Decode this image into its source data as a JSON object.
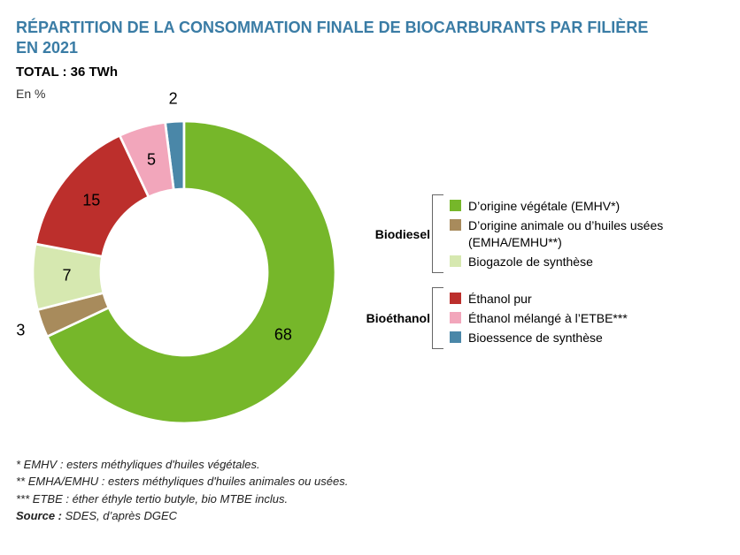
{
  "title_line1": "RÉPARTITION DE LA CONSOMMATION FINALE DE BIOCARBURANTS PAR FILIÈRE",
  "title_line2": "EN 2021",
  "subtitle": "TOTAL : 36 TWh",
  "unit_label": "En %",
  "chart": {
    "type": "donut",
    "inner_radius_pct": 55,
    "background_color": "#ffffff",
    "slice_order_clockwise_from_top": [
      "bioessence",
      "vegetale",
      "animale",
      "biogazole",
      "ethanol_pur",
      "ethanol_etbe"
    ],
    "slices": {
      "vegetale": {
        "value": 68,
        "color": "#76b72a",
        "label": "D’origine végétale (EMHV*)"
      },
      "animale": {
        "value": 3,
        "color": "#a88b5c",
        "label": "D’origine animale ou d’huiles usées (EMHA/EMHU**)"
      },
      "biogazole": {
        "value": 7,
        "color": "#d6e8b0",
        "label": "Biogazole de synthèse"
      },
      "ethanol_pur": {
        "value": 15,
        "color": "#bc2f2c",
        "label": "Éthanol pur"
      },
      "ethanol_etbe": {
        "value": 5,
        "color": "#f2a6bb",
        "label": "Éthanol mélangé à l’ETBE***"
      },
      "bioessence": {
        "value": 2,
        "color": "#4a87a8",
        "label": "Bioessence de synthèse"
      }
    },
    "label_fontsize": 18,
    "label_color": "#000000"
  },
  "legend": {
    "groups": [
      {
        "title": "Biodiesel",
        "items": [
          "vegetale",
          "animale",
          "biogazole"
        ]
      },
      {
        "title": "Bioéthanol",
        "items": [
          "ethanol_pur",
          "ethanol_etbe",
          "bioessence"
        ]
      }
    ],
    "fontsize": 14,
    "swatch_size": 13,
    "bracket_color": "#666666"
  },
  "footnotes": [
    "* EMHV : esters méthyliques d'huiles végétales.",
    "** EMHA/EMHU : esters méthyliques d'huiles animales ou usées.",
    "*** ETBE : éther éthyle tertio butyle, bio MTBE inclus."
  ],
  "source_label": "Source :",
  "source_text": "SDES, d’après DGEC"
}
